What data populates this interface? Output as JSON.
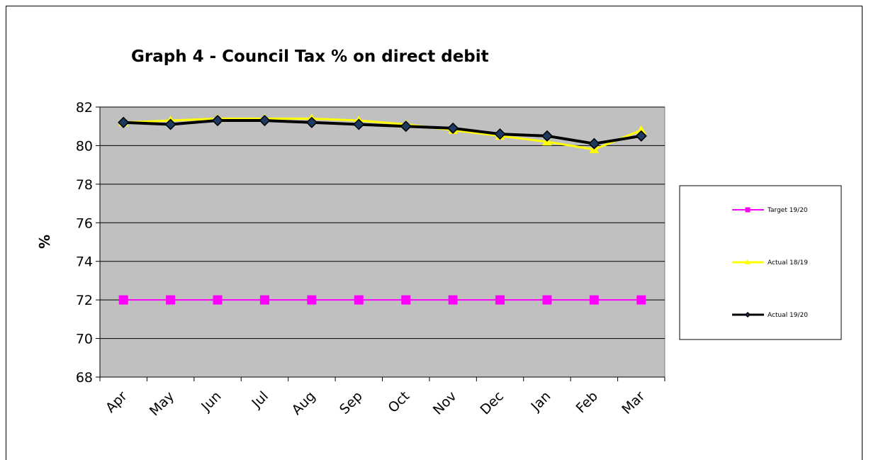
{
  "chart_data": {
    "type": "line",
    "title": "Graph 4 - Council Tax % on direct debit",
    "ylabel": "%",
    "xlabel": "",
    "categories": [
      "Apr",
      "May",
      "Jun",
      "Jul",
      "Aug",
      "Sep",
      "Oct",
      "Nov",
      "Dec",
      "Jan",
      "Feb",
      "Mar"
    ],
    "ylim": [
      68,
      82
    ],
    "yticks": [
      68,
      70,
      72,
      74,
      76,
      78,
      80,
      82
    ],
    "grid": "horizontal",
    "legend_position": "right",
    "plot_background": "#c0c0c0",
    "series": [
      {
        "name": "Target 19/20",
        "color": "#ff00ff",
        "marker": "square",
        "values": [
          72,
          72,
          72,
          72,
          72,
          72,
          72,
          72,
          72,
          72,
          72,
          72
        ]
      },
      {
        "name": "Actual 18/19",
        "color": "#ffff00",
        "marker": "triangle",
        "values": [
          81.2,
          81.3,
          81.4,
          81.4,
          81.4,
          81.3,
          81.1,
          80.8,
          80.5,
          80.2,
          79.8,
          80.8
        ]
      },
      {
        "name": "Actual 19/20",
        "color": "#000000",
        "marker": "diamond",
        "marker_fill": "#1f3a5f",
        "values": [
          81.2,
          81.1,
          81.3,
          81.3,
          81.2,
          81.1,
          81.0,
          80.9,
          80.6,
          80.5,
          80.1,
          80.5
        ]
      }
    ]
  }
}
